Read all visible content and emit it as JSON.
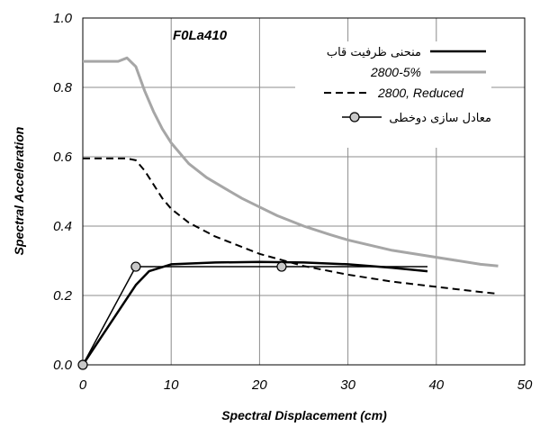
{
  "chart_data": {
    "type": "line",
    "annotation": "F0La410",
    "xlabel": "Spectral Displacement (cm)",
    "ylabel": "Spectral Acceleration",
    "xlim": [
      0,
      50
    ],
    "ylim": [
      0,
      1.0
    ],
    "x_ticks": [
      0,
      10,
      20,
      30,
      40,
      50
    ],
    "y_ticks": [
      0.0,
      0.2,
      0.4,
      0.6,
      0.8,
      1.0
    ],
    "x_tick_labels": [
      "0",
      "10",
      "20",
      "30",
      "40",
      "50"
    ],
    "y_tick_labels": [
      "0.0",
      "0.2",
      "0.4",
      "0.6",
      "0.8",
      "1.0"
    ],
    "grid": true,
    "legend_position": "top-right",
    "series": [
      {
        "name": "منحنی ظرفیت قاب",
        "color": "#000000",
        "style": "solid-thick",
        "x": [
          0,
          6,
          7.5,
          10,
          15,
          20,
          25,
          30,
          35,
          39
        ],
        "y": [
          0,
          0.23,
          0.27,
          0.29,
          0.295,
          0.297,
          0.295,
          0.29,
          0.28,
          0.27
        ]
      },
      {
        "name": "2800-5%",
        "color": "#a6a6a6",
        "style": "solid-gray",
        "x": [
          0,
          4,
          5,
          6,
          7,
          8,
          9,
          10,
          12,
          14,
          16,
          18,
          20,
          22,
          25,
          28,
          30,
          35,
          40,
          45,
          47
        ],
        "y": [
          0.875,
          0.875,
          0.885,
          0.86,
          0.79,
          0.73,
          0.68,
          0.64,
          0.58,
          0.54,
          0.51,
          0.48,
          0.455,
          0.43,
          0.4,
          0.375,
          0.36,
          0.33,
          0.31,
          0.29,
          0.285
        ]
      },
      {
        "name": "2800, Reduced",
        "color": "#000000",
        "style": "dashed",
        "x": [
          0,
          5,
          6,
          7,
          8,
          9,
          10,
          12,
          15,
          20,
          25,
          30,
          35,
          40,
          45,
          47
        ],
        "y": [
          0.595,
          0.595,
          0.59,
          0.56,
          0.52,
          0.48,
          0.45,
          0.41,
          0.37,
          0.32,
          0.285,
          0.26,
          0.24,
          0.225,
          0.21,
          0.205
        ]
      },
      {
        "name": "معادل سازی دوخطی",
        "color": "#000000",
        "style": "solid-markers",
        "x": [
          0,
          6,
          22.5,
          39
        ],
        "y": [
          0,
          0.283,
          0.283,
          0.283
        ],
        "marker_indices": [
          0,
          1,
          2
        ]
      }
    ]
  }
}
